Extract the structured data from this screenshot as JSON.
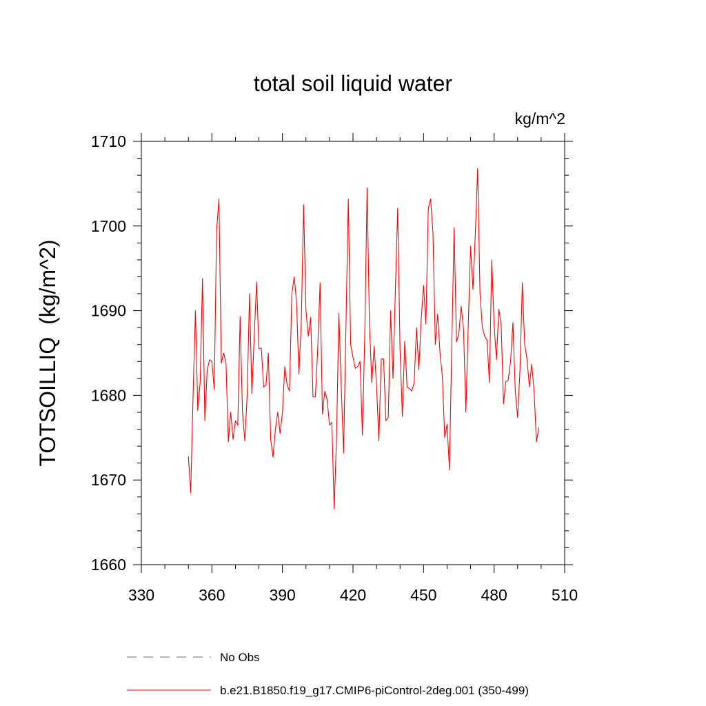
{
  "chart_data": {
    "type": "line",
    "title": "total soil liquid water",
    "units_label": "kg/m^2",
    "ylabel": "TOTSOILLIQ  (kg/m^2)",
    "xlabel": "",
    "xlim": [
      330,
      510
    ],
    "ylim": [
      1660,
      1710
    ],
    "x_ticks": [
      330,
      360,
      390,
      420,
      450,
      480,
      510
    ],
    "y_ticks": [
      1660,
      1670,
      1680,
      1690,
      1700,
      1710
    ],
    "grid": false,
    "legend_position": "bottom",
    "series": [
      {
        "name": "No Obs",
        "color": "#6a5acd",
        "style": "dashed",
        "x": [],
        "values": []
      },
      {
        "name": "b.e21.B1850.f19_g17.CMIP6-piControl-2deg.001 (350-499)",
        "color": "#ff0000",
        "style": "solid",
        "x": [
          350,
          351,
          352,
          353,
          354,
          355,
          356,
          357,
          358,
          359,
          360,
          361,
          362,
          363,
          364,
          365,
          366,
          367,
          368,
          369,
          370,
          371,
          372,
          373,
          374,
          375,
          376,
          377,
          378,
          379,
          380,
          381,
          382,
          383,
          384,
          385,
          386,
          387,
          388,
          389,
          390,
          391,
          392,
          393,
          394,
          395,
          396,
          397,
          398,
          399,
          400,
          401,
          402,
          403,
          404,
          405,
          406,
          407,
          408,
          409,
          410,
          411,
          412,
          413,
          414,
          415,
          416,
          417,
          418,
          419,
          420,
          421,
          422,
          423,
          424,
          425,
          426,
          427,
          428,
          429,
          430,
          431,
          432,
          433,
          434,
          435,
          436,
          437,
          438,
          439,
          440,
          441,
          442,
          443,
          444,
          445,
          446,
          447,
          448,
          449,
          450,
          451,
          452,
          453,
          454,
          455,
          456,
          457,
          458,
          459,
          460,
          461,
          462,
          463,
          464,
          465,
          466,
          467,
          468,
          469,
          470,
          471,
          472,
          473,
          474,
          475,
          476,
          477,
          478,
          479,
          480,
          481,
          482,
          483,
          484,
          485,
          486,
          487,
          488,
          489,
          490,
          491,
          492,
          493,
          494,
          495,
          496,
          497,
          498,
          499
        ],
        "values": [
          1672.8,
          1668.5,
          1680.0,
          1690.0,
          1678.2,
          1681.5,
          1693.8,
          1677.0,
          1683.0,
          1684.2,
          1684.0,
          1680.7,
          1699.5,
          1703.2,
          1683.8,
          1685.0,
          1683.8,
          1674.5,
          1678.0,
          1674.8,
          1677.0,
          1676.5,
          1689.3,
          1678.0,
          1674.6,
          1680.0,
          1692.0,
          1680.2,
          1687.0,
          1693.4,
          1685.5,
          1685.6,
          1681.0,
          1681.2,
          1685.0,
          1674.8,
          1672.7,
          1676.0,
          1678.0,
          1675.5,
          1678.0,
          1683.4,
          1681.2,
          1680.5,
          1692.0,
          1694.0,
          1691.0,
          1682.5,
          1688.5,
          1702.5,
          1690.0,
          1687.0,
          1689.2,
          1679.8,
          1679.8,
          1685.5,
          1693.3,
          1677.8,
          1680.5,
          1679.5,
          1676.5,
          1676.8,
          1666.6,
          1675.0,
          1689.7,
          1681.0,
          1673.2,
          1688.0,
          1703.2,
          1686.0,
          1684.5,
          1683.2,
          1683.4,
          1684.0,
          1675.3,
          1687.2,
          1704.5,
          1688.3,
          1681.5,
          1685.8,
          1681.2,
          1674.6,
          1684.3,
          1684.3,
          1677.0,
          1677.4,
          1690.0,
          1682.0,
          1692.3,
          1702.1,
          1685.4,
          1677.5,
          1686.4,
          1681.0,
          1680.8,
          1680.5,
          1681.5,
          1688.0,
          1683.0,
          1689.0,
          1693.0,
          1688.4,
          1702.0,
          1703.2,
          1699.2,
          1686.0,
          1689.6,
          1685.0,
          1682.2,
          1675.0,
          1676.6,
          1671.2,
          1686.0,
          1699.8,
          1686.3,
          1687.3,
          1690.5,
          1687.8,
          1678.0,
          1688.3,
          1697.6,
          1692.5,
          1699.0,
          1706.8,
          1692.0,
          1688.0,
          1687.0,
          1686.5,
          1681.5,
          1696.0,
          1688.3,
          1684.2,
          1690.2,
          1688.3,
          1679.0,
          1681.6,
          1681.8,
          1684.0,
          1688.6,
          1680.5,
          1677.4,
          1683.0,
          1693.3,
          1686.0,
          1684.3,
          1681.0,
          1683.7,
          1680.5,
          1674.5,
          1676.2
        ]
      }
    ]
  }
}
